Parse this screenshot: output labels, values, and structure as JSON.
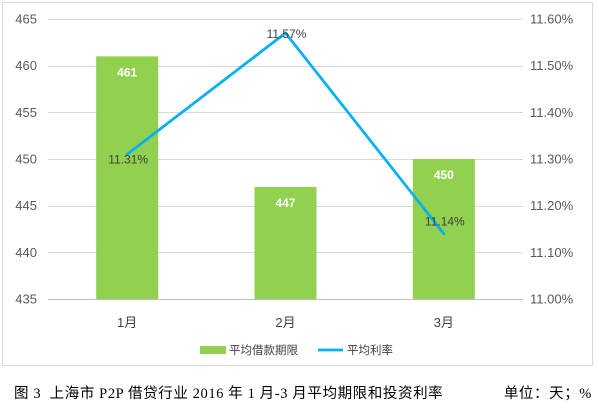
{
  "chart_data": {
    "type": "bar",
    "categories": [
      "1月",
      "2月",
      "3月"
    ],
    "series": [
      {
        "name": "平均借款期限",
        "type": "bar",
        "axis": "left",
        "color": "#92D050",
        "values": [
          461,
          447,
          450
        ]
      },
      {
        "name": "平均利率",
        "type": "line",
        "axis": "right",
        "color": "#00B0F0",
        "values": [
          11.31,
          11.57,
          11.14
        ],
        "data_labels": [
          "11.31%",
          "11.57%",
          "11.14%"
        ]
      }
    ],
    "y_left": {
      "range": [
        435,
        465
      ],
      "tick_labels": [
        "435",
        "440",
        "445",
        "450",
        "455",
        "460",
        "465"
      ]
    },
    "y_right": {
      "range": [
        11.0,
        11.6
      ],
      "tick_labels": [
        "11.00%",
        "11.10%",
        "11.20%",
        "11.30%",
        "11.40%",
        "11.50%",
        "11.60%"
      ]
    },
    "grid": true,
    "legend": "bottom",
    "grid_color": "#D9D9D9",
    "bar_label_color": "#FFFFFF"
  },
  "caption": {
    "title": "图 3  上海市 P2P 借贷行业 2016 年 1 月-3 月平均期限和投资利率",
    "unit": "单位：天；%"
  }
}
